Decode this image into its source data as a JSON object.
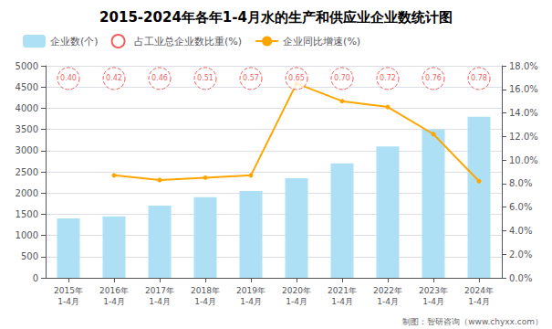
{
  "chart_data": {
    "type": "bar",
    "title": "2015-2024年各年1-4月水的生产和供应业企业数统计图",
    "categories": [
      "2015年\n1-4月",
      "2016年\n1-4月",
      "2017年\n1-4月",
      "2018年\n1-4月",
      "2019年\n1-4月",
      "2020年\n1-4月",
      "2021年\n1-4月",
      "2022年\n1-4月",
      "2023年\n1-4月",
      "2024年\n1-4月"
    ],
    "series": [
      {
        "name": "企业数(个)",
        "type": "bar",
        "color": "#ADE0F5",
        "values": [
          1400,
          1450,
          1700,
          1900,
          2050,
          2350,
          2700,
          3100,
          3500,
          3800
        ]
      },
      {
        "name": "企业同比增速(%)",
        "type": "line",
        "axis": "y2",
        "color": "#FFA500",
        "marker": "circle",
        "values": [
          null,
          8.7,
          8.3,
          8.5,
          8.7,
          16.5,
          15.0,
          14.5,
          12.2,
          8.2
        ]
      }
    ],
    "circle_annotations": {
      "name": "占工业总企业数比重(%)",
      "color": "#EE3333",
      "marker": "circle",
      "line_style": "dashed",
      "labels": [
        "0.40",
        "0.42",
        "0.46",
        "0.51",
        "0.57",
        "0.65",
        "0.70",
        "0.72",
        "0.76",
        "0.78"
      ]
    },
    "annotations": [
      "制图：智研咨询（www.chyxx.com）"
    ],
    "ylim": [
      0,
      5000
    ],
    "yticks": [
      0,
      500,
      1000,
      1500,
      2000,
      2500,
      3000,
      3500,
      4000,
      4500,
      5000
    ],
    "y2lim": [
      0,
      18
    ],
    "y2ticks": [
      {
        "value": 0.0,
        "label": "0.0%"
      },
      {
        "value": 2.0,
        "label": "2.0%"
      },
      {
        "value": 4.0,
        "label": "4.0%"
      },
      {
        "value": 6.0,
        "label": "6.0%"
      },
      {
        "value": 8.0,
        "label": "8.0%"
      },
      {
        "value": 10.0,
        "label": "10.0%"
      },
      {
        "value": 12.0,
        "label": "12.0%"
      },
      {
        "value": 14.0,
        "label": "14.0%"
      },
      {
        "value": 16.0,
        "label": "16.0%"
      },
      {
        "value": 18.0,
        "label": "18.0%"
      }
    ],
    "grid": true,
    "legend": "upper left"
  }
}
